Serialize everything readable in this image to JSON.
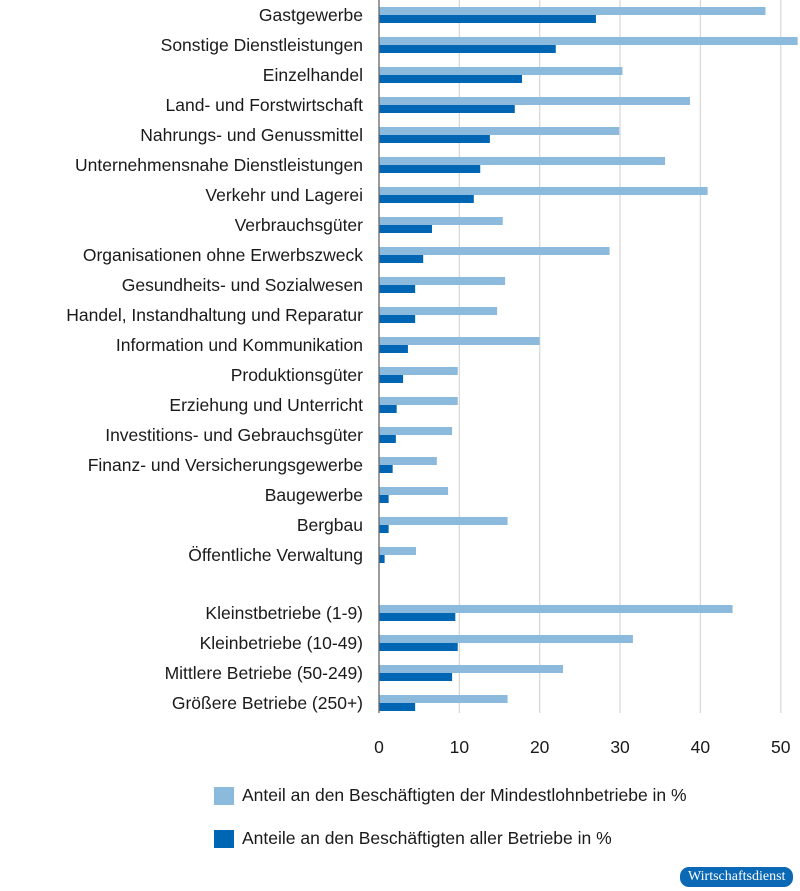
{
  "chart_data": {
    "type": "bar",
    "orientation": "horizontal",
    "categories": [
      "Gastgewerbe",
      "Sonstige Dienstleistungen",
      "Einzelhandel",
      "Land- und Forstwirtschaft",
      "Nahrungs- und Genussmittel",
      "Unternehmensnahe Dienstleistungen",
      "Verkehr und Lagerei",
      "Verbrauchsgüter",
      "Organisationen ohne Erwerbszweck",
      "Gesundheits- und Sozialwesen",
      "Handel, Instandhaltung und Reparatur",
      "Information und Kommunikation",
      "Produktionsgüter",
      "Erziehung und Unterricht",
      "Investitions- und Gebrauchsgüter",
      "Finanz- und Versicherungsgewerbe",
      "Baugewerbe",
      "Bergbau",
      "Öffentliche Verwaltung",
      "",
      "Kleinstbetriebe (1-9)",
      "Kleinbetriebe (10-49)",
      "Mittlere Betriebe (50-249)",
      "Größere Betriebe (250+)"
    ],
    "series": [
      {
        "name": "Anteil an den Beschäftigten der Mindestlohnbetriebe in %",
        "color": "#8bbadd",
        "values": [
          48.1,
          52.1,
          30.3,
          38.7,
          29.9,
          35.6,
          40.9,
          15.4,
          28.7,
          15.7,
          14.7,
          20.0,
          9.8,
          9.8,
          9.1,
          7.2,
          8.6,
          16.0,
          4.6,
          null,
          44.0,
          31.6,
          22.9,
          16.0
        ]
      },
      {
        "name": "Anteile an den Beschäftigten aller Betriebe in %",
        "color": "#0066b3",
        "values": [
          27.0,
          22.0,
          17.8,
          16.9,
          13.8,
          12.6,
          11.8,
          6.6,
          5.5,
          4.5,
          4.5,
          3.6,
          3.0,
          2.2,
          2.1,
          1.7,
          1.2,
          1.2,
          0.7,
          null,
          9.5,
          9.8,
          9.1,
          4.5
        ]
      }
    ],
    "xticks": [
      "0",
      "10",
      "20",
      "30",
      "40",
      "50"
    ],
    "xlim": [
      0,
      52.2
    ],
    "grid": true,
    "legend_position": "bottom",
    "title": "",
    "xlabel": "",
    "ylabel": ""
  },
  "source_badge": "Wirtschaftsdienst"
}
